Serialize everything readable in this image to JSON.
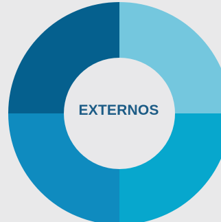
{
  "diagram": {
    "center_label": "EXTERNOS",
    "background": "#e9e9ea",
    "center_color": "#e8e8ea",
    "label_color": "#1d5c86",
    "segments": [
      {
        "name": "top-right",
        "color": "#74c7de"
      },
      {
        "name": "bottom-right",
        "color": "#07a7cd"
      },
      {
        "name": "bottom-left",
        "color": "#0f8bbf"
      },
      {
        "name": "top-left",
        "color": "#05608e"
      }
    ]
  }
}
